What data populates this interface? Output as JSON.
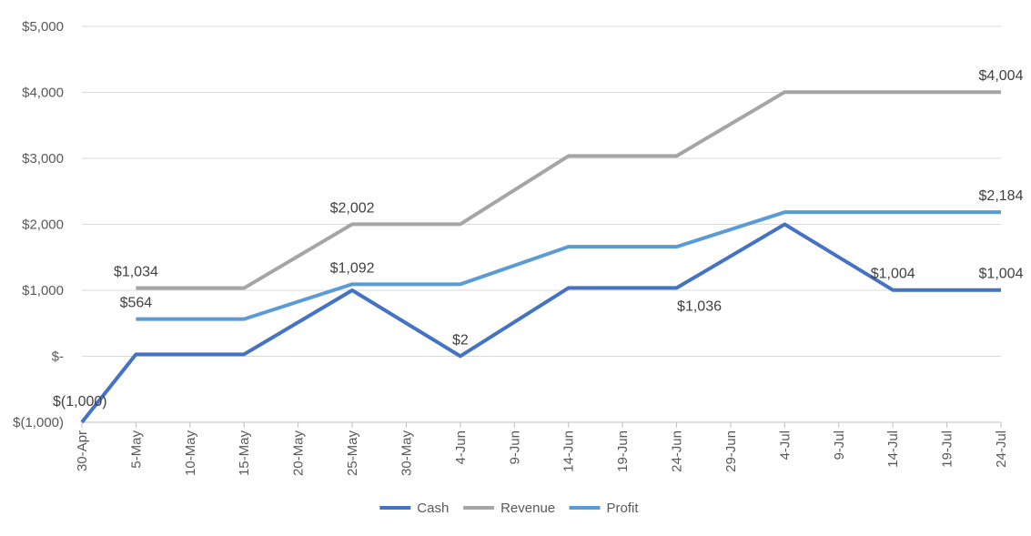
{
  "chart_data": {
    "type": "line",
    "title": "",
    "xlabel": "",
    "ylabel": "",
    "x": [
      "30-Apr",
      "5-May",
      "10-May",
      "15-May",
      "20-May",
      "25-May",
      "30-May",
      "4-Jun",
      "9-Jun",
      "14-Jun",
      "19-Jun",
      "24-Jun",
      "29-Jun",
      "4-Jul",
      "9-Jul",
      "14-Jul",
      "19-Jul",
      "24-Jul"
    ],
    "ylim": [
      -1000,
      5000
    ],
    "yticks": [
      {
        "value": 5000,
        "label": "$5,000"
      },
      {
        "value": 4000,
        "label": "$4,000"
      },
      {
        "value": 3000,
        "label": "$3,000"
      },
      {
        "value": 2000,
        "label": "$2,000"
      },
      {
        "value": 1000,
        "label": "$1,000"
      },
      {
        "value": 0,
        "label": "$-"
      },
      {
        "value": -1000,
        "label": "$(1,000)"
      }
    ],
    "grid": true,
    "legend_position": "bottom",
    "series": [
      {
        "name": "Cash",
        "color": "#4472C4",
        "points": [
          {
            "x": "30-Apr",
            "y": -1000
          },
          {
            "x": "5-May",
            "y": 30
          },
          {
            "x": "15-May",
            "y": 30
          },
          {
            "x": "25-May",
            "y": 1000
          },
          {
            "x": "4-Jun",
            "y": 2
          },
          {
            "x": "14-Jun",
            "y": 1036
          },
          {
            "x": "24-Jun",
            "y": 1036
          },
          {
            "x": "4-Jul",
            "y": 2000
          },
          {
            "x": "14-Jul",
            "y": 1004
          },
          {
            "x": "24-Jul",
            "y": 1004
          }
        ]
      },
      {
        "name": "Revenue",
        "color": "#A5A5A5",
        "points": [
          {
            "x": "5-May",
            "y": 1034
          },
          {
            "x": "15-May",
            "y": 1034
          },
          {
            "x": "25-May",
            "y": 2002
          },
          {
            "x": "4-Jun",
            "y": 2002
          },
          {
            "x": "14-Jun",
            "y": 3036
          },
          {
            "x": "24-Jun",
            "y": 3036
          },
          {
            "x": "4-Jul",
            "y": 4004
          },
          {
            "x": "24-Jul",
            "y": 4004
          }
        ]
      },
      {
        "name": "Profit",
        "color": "#5B9BD5",
        "points": [
          {
            "x": "5-May",
            "y": 564
          },
          {
            "x": "15-May",
            "y": 564
          },
          {
            "x": "25-May",
            "y": 1092
          },
          {
            "x": "4-Jun",
            "y": 1092
          },
          {
            "x": "14-Jun",
            "y": 1660
          },
          {
            "x": "24-Jun",
            "y": 1660
          },
          {
            "x": "4-Jul",
            "y": 2184
          },
          {
            "x": "24-Jul",
            "y": 2184
          }
        ]
      }
    ],
    "annotations": [
      {
        "text": "$(1,000)",
        "x": "30-Apr",
        "y": -1000,
        "placement": "above-right"
      },
      {
        "text": "$1,034",
        "x": "5-May",
        "y": 1034,
        "placement": "above"
      },
      {
        "text": "$564",
        "x": "5-May",
        "y": 564,
        "placement": "above"
      },
      {
        "text": "$2,002",
        "x": "25-May",
        "y": 2002,
        "placement": "above"
      },
      {
        "text": "$1,092",
        "x": "25-May",
        "y": 1092,
        "placement": "above"
      },
      {
        "text": "$2",
        "x": "4-Jun",
        "y": 2,
        "placement": "above"
      },
      {
        "text": "$1,036",
        "x": "24-Jun",
        "y": 1036,
        "placement": "below-right"
      },
      {
        "text": "$1,004",
        "x": "14-Jul",
        "y": 1004,
        "placement": "above"
      },
      {
        "text": "$4,004",
        "x": "24-Jul",
        "y": 4004,
        "placement": "above"
      },
      {
        "text": "$2,184",
        "x": "24-Jul",
        "y": 2184,
        "placement": "above"
      },
      {
        "text": "$1,004",
        "x": "24-Jul",
        "y": 1004,
        "placement": "above"
      }
    ]
  }
}
